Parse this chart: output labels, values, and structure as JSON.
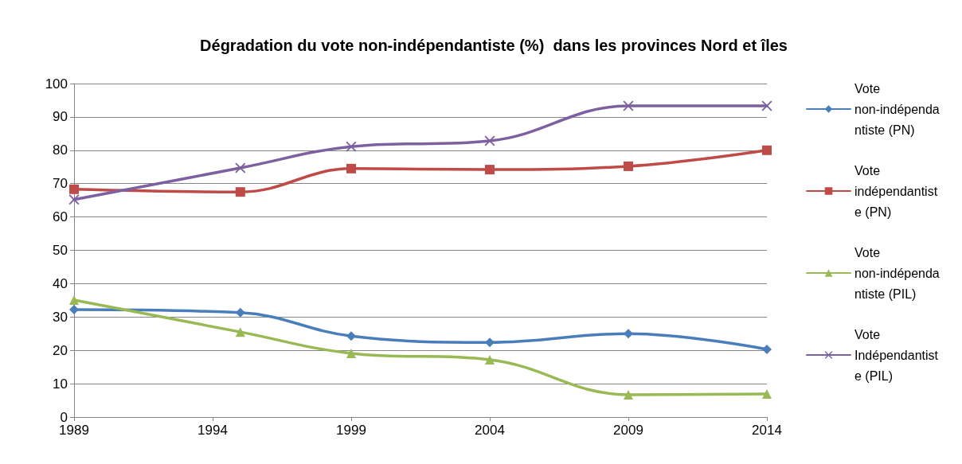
{
  "chart_data": {
    "type": "line",
    "title": "Dégradation du vote non-indépendantiste (%)  dans les provinces Nord et îles",
    "x": [
      1989,
      1995,
      1999,
      2004,
      2009,
      2014
    ],
    "series": [
      {
        "name": "Vote non-indépendantiste (PN)",
        "color": "#4a7ebb",
        "marker": "diamond",
        "values": [
          32.2,
          31.3,
          24.3,
          22.4,
          25,
          20.3
        ]
      },
      {
        "name": "Vote indépendantiste (PN)",
        "color": "#be4b48",
        "marker": "square",
        "values": [
          68.3,
          67.5,
          74.5,
          74.2,
          75.2,
          80
        ]
      },
      {
        "name": "Vote non-indépendantiste (PIL)",
        "color": "#98b954",
        "marker": "triangle",
        "values": [
          35.1,
          25.5,
          19.1,
          17.2,
          6.7,
          6.9
        ]
      },
      {
        "name": "Vote Indépendantiste (PIL)",
        "color": "#7d60a0",
        "marker": "cross",
        "values": [
          65.2,
          74.7,
          81.1,
          82.8,
          93.3,
          93.3
        ]
      }
    ],
    "xlim": [
      1989,
      2014
    ],
    "xticks": [
      1989,
      1994,
      1999,
      2004,
      2009,
      2014
    ],
    "ylim": [
      0,
      100
    ],
    "yticks": [
      0,
      10,
      20,
      30,
      40,
      50,
      60,
      70,
      80,
      90,
      100
    ],
    "grid": "y",
    "legend": "right"
  }
}
